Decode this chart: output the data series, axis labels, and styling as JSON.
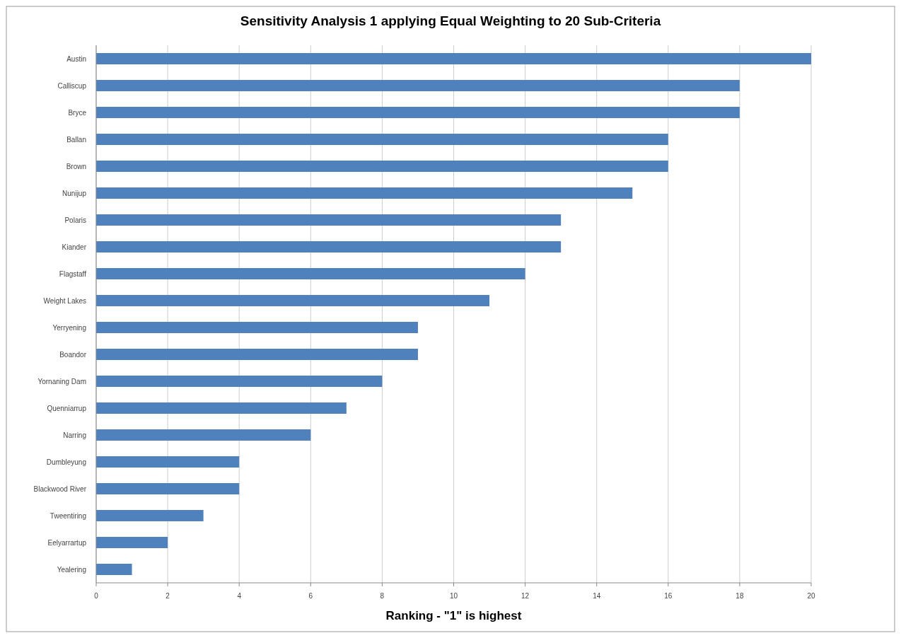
{
  "chart_data": {
    "type": "bar",
    "orientation": "horizontal",
    "title": "Sensitivity Analysis 1 applying Equal Weighting to 20 Sub-Criteria",
    "xlabel": "Ranking  - \"1\" is highest",
    "categories": [
      "Austin",
      "Calliscup",
      "Bryce",
      "Ballan",
      "Brown",
      "Nunijup",
      "Polaris",
      "Kiander",
      "Flagstaff",
      "Weight Lakes",
      "Yerryening",
      "Boandor",
      "Yornaning Dam",
      "Quenniarrup",
      "Narring",
      "Dumbleyung",
      "Blackwood River",
      "Tweentiring",
      "Eelyarrartup",
      "Yealering"
    ],
    "values": [
      20,
      18,
      18,
      16,
      16,
      15,
      13,
      13,
      12,
      11,
      9,
      9,
      8,
      7,
      6,
      4,
      4,
      3,
      2,
      1
    ],
    "color": "#4f81bd",
    "xlim": [
      0,
      20
    ],
    "xticks": [
      0,
      2,
      4,
      6,
      8,
      10,
      12,
      14,
      16,
      18,
      20
    ],
    "grid": "x"
  }
}
